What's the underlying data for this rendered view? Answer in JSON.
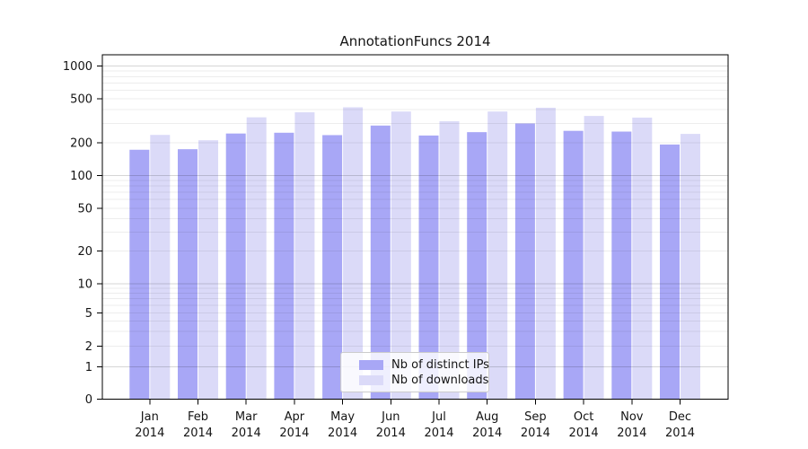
{
  "figure": {
    "background": "#ffffff"
  },
  "chart_data": {
    "type": "bar",
    "title": "AnnotationFuncs 2014",
    "x": {
      "months": [
        "Jan",
        "Feb",
        "Mar",
        "Apr",
        "May",
        "Jun",
        "Jul",
        "Aug",
        "Sep",
        "Oct",
        "Nov",
        "Dec"
      ],
      "year": "2014"
    },
    "series": [
      {
        "name": "Nb of distinct IPs",
        "color": "#a8a7f6",
        "values": [
          172,
          174,
          242,
          246,
          234,
          286,
          232,
          249,
          299,
          256,
          252,
          192
        ]
      },
      {
        "name": "Nb of downloads",
        "color": "#dbdaf8",
        "values": [
          235,
          210,
          340,
          378,
          420,
          384,
          313,
          384,
          416,
          350,
          338,
          240
        ]
      }
    ],
    "yscale": "symlog",
    "yticks": [
      1000,
      500,
      200,
      100,
      50,
      20,
      10,
      5,
      2,
      1,
      0
    ],
    "ylim": [
      0,
      1200
    ],
    "grid": "horizontal log major+minor",
    "legend_position": "lower center",
    "colors": {
      "grid_minor": "rgba(0,0,0,0.07)",
      "grid_major": "rgba(0,0,0,0.16)",
      "axis": "#000000",
      "text": "#141414"
    }
  }
}
